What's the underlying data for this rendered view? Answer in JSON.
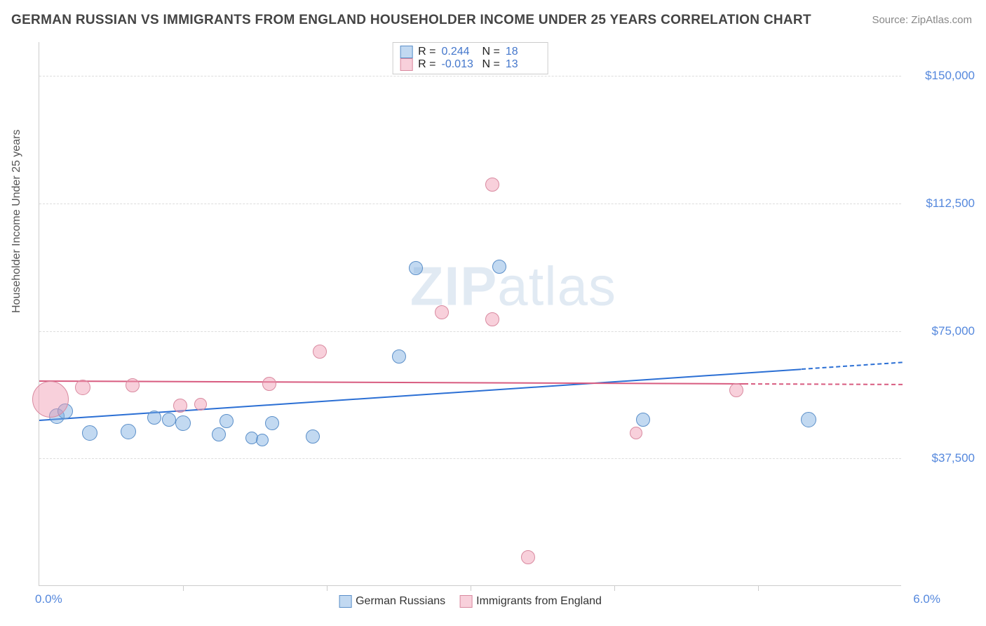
{
  "title": "GERMAN RUSSIAN VS IMMIGRANTS FROM ENGLAND HOUSEHOLDER INCOME UNDER 25 YEARS CORRELATION CHART",
  "source": "Source: ZipAtlas.com",
  "y_axis_label": "Householder Income Under 25 years",
  "watermark": {
    "part1": "ZIP",
    "part2": "atlas"
  },
  "chart": {
    "type": "scatter-bubble",
    "background_color": "#ffffff",
    "grid_color": "#dddddd",
    "axis_color": "#cccccc",
    "x": {
      "min": 0.0,
      "max": 6.0,
      "tick_step": 1.0,
      "label_min": "0.0%",
      "label_max": "6.0%"
    },
    "y": {
      "min": 0,
      "max": 160000,
      "tick_step": 37500,
      "ticks": [
        37500,
        75000,
        112500,
        150000
      ],
      "tick_labels": [
        "$37,500",
        "$75,000",
        "$112,500",
        "$150,000"
      ]
    },
    "series": [
      {
        "name": "German Russians",
        "legend_label": "German Russians",
        "fill_color": "rgba(120,170,225,0.45)",
        "stroke_color": "#5b8fc9",
        "trend_color": "#2b6fd4",
        "R": "0.244",
        "N": "18",
        "trend": {
          "x1": 0.0,
          "y1": 49000,
          "x2": 6.0,
          "y2": 66000,
          "extrapolate_from_x": 5.3
        },
        "points": [
          {
            "x": 0.12,
            "y": 50000,
            "r": 11
          },
          {
            "x": 0.18,
            "y": 51500,
            "r": 11
          },
          {
            "x": 0.35,
            "y": 45000,
            "r": 11
          },
          {
            "x": 0.62,
            "y": 45500,
            "r": 11
          },
          {
            "x": 0.8,
            "y": 49500,
            "r": 10
          },
          {
            "x": 0.9,
            "y": 49000,
            "r": 10
          },
          {
            "x": 1.0,
            "y": 48000,
            "r": 11
          },
          {
            "x": 1.25,
            "y": 44500,
            "r": 10
          },
          {
            "x": 1.3,
            "y": 48500,
            "r": 10
          },
          {
            "x": 1.48,
            "y": 43500,
            "r": 9
          },
          {
            "x": 1.55,
            "y": 43000,
            "r": 9
          },
          {
            "x": 1.62,
            "y": 48000,
            "r": 10
          },
          {
            "x": 1.9,
            "y": 44000,
            "r": 10
          },
          {
            "x": 2.5,
            "y": 67500,
            "r": 10
          },
          {
            "x": 2.62,
            "y": 93500,
            "r": 10
          },
          {
            "x": 3.2,
            "y": 94000,
            "r": 10
          },
          {
            "x": 4.2,
            "y": 49000,
            "r": 10
          },
          {
            "x": 5.35,
            "y": 49000,
            "r": 11
          }
        ]
      },
      {
        "name": "Immigrants from England",
        "legend_label": "Immigrants from England",
        "fill_color": "rgba(240,150,175,0.45)",
        "stroke_color": "#d98aa0",
        "trend_color": "#d85c80",
        "R": "-0.013",
        "N": "13",
        "trend": {
          "x1": 0.0,
          "y1": 60500,
          "x2": 6.0,
          "y2": 59500,
          "extrapolate_from_x": 4.9
        },
        "points": [
          {
            "x": 0.08,
            "y": 55000,
            "r": 26
          },
          {
            "x": 0.3,
            "y": 58500,
            "r": 11
          },
          {
            "x": 0.65,
            "y": 59000,
            "r": 10
          },
          {
            "x": 0.98,
            "y": 53000,
            "r": 10
          },
          {
            "x": 1.12,
            "y": 53500,
            "r": 9
          },
          {
            "x": 1.6,
            "y": 59500,
            "r": 10
          },
          {
            "x": 1.95,
            "y": 69000,
            "r": 10
          },
          {
            "x": 2.8,
            "y": 80500,
            "r": 10
          },
          {
            "x": 3.15,
            "y": 78500,
            "r": 10
          },
          {
            "x": 3.15,
            "y": 118000,
            "r": 10
          },
          {
            "x": 3.4,
            "y": 8500,
            "r": 10
          },
          {
            "x": 4.15,
            "y": 45000,
            "r": 9
          },
          {
            "x": 4.85,
            "y": 57500,
            "r": 10
          }
        ]
      }
    ],
    "stats_legend": {
      "R_label": "R =",
      "N_label": "N ="
    },
    "bottom_legend_fontsize": 16
  }
}
